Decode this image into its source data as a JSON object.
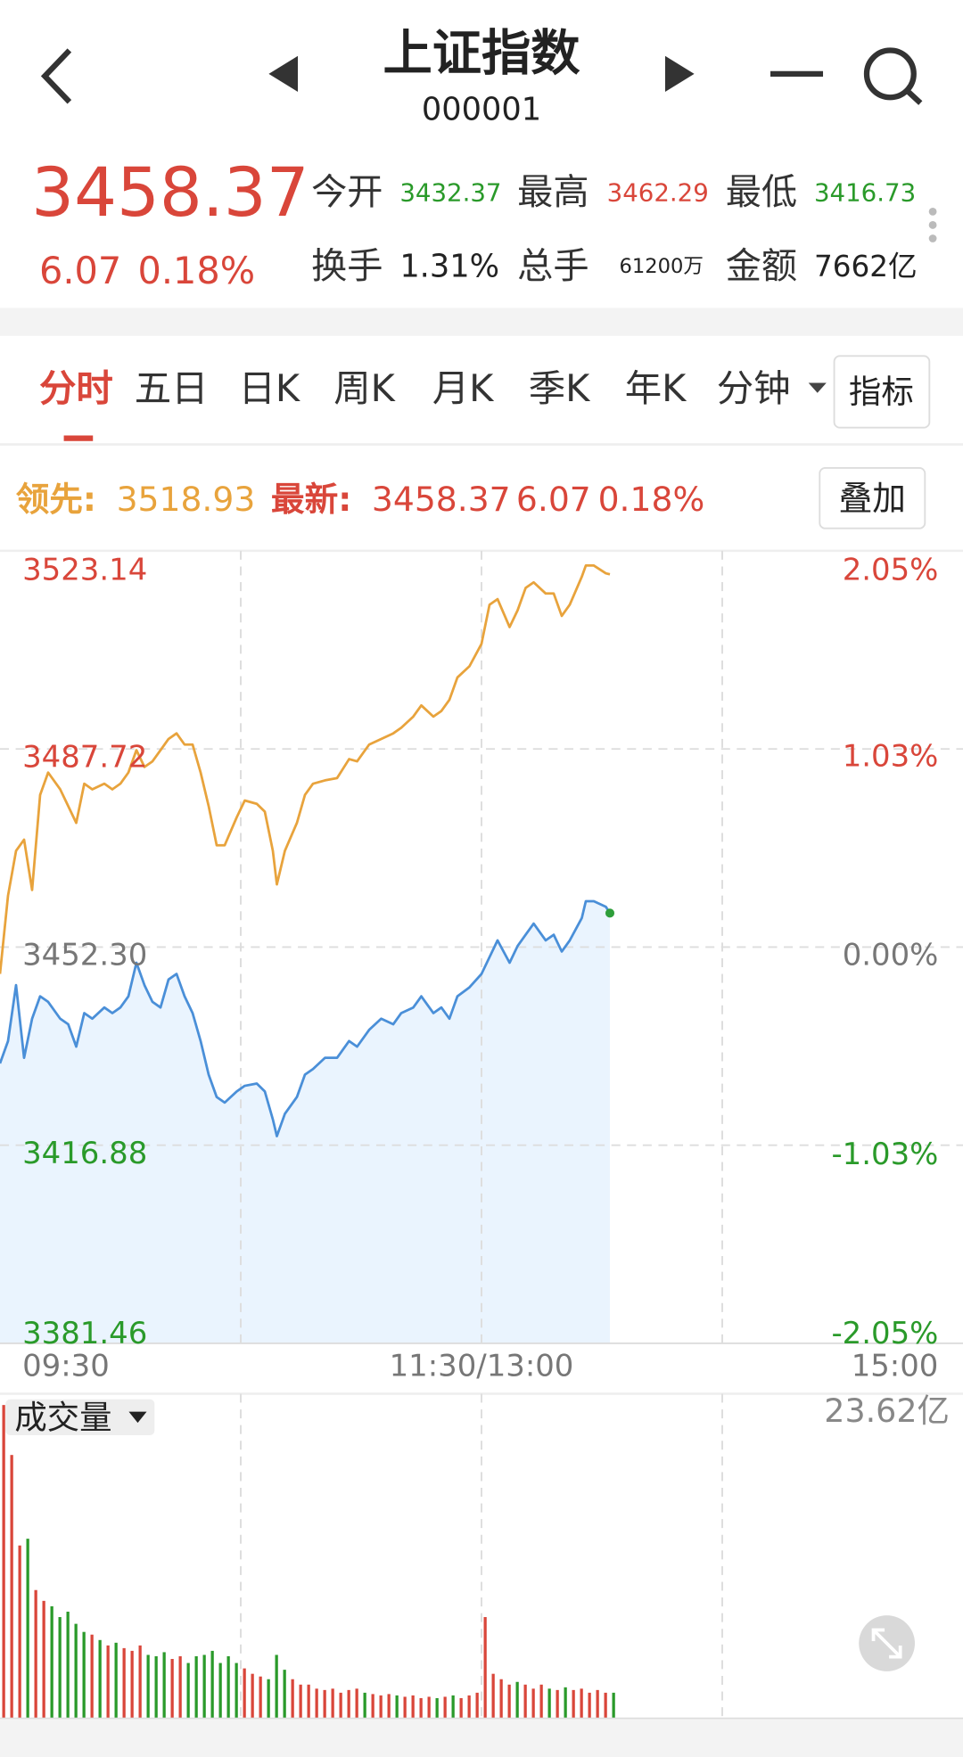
{
  "header": {
    "title": "上证指数",
    "code": "000001"
  },
  "quote": {
    "price": "3458.37",
    "change": "6.07",
    "change_pct": "0.18%",
    "stats": [
      {
        "label": "今开",
        "value": "3432.37"
      },
      {
        "label": "最高",
        "value": "3462.29"
      },
      {
        "label": "最低",
        "value": "3416.73"
      },
      {
        "label": "换手",
        "value": "1.31%"
      },
      {
        "label": "总手",
        "value": "61200万"
      },
      {
        "label": "金额",
        "value": "7662亿"
      }
    ]
  },
  "tabs": [
    "分时",
    "五日",
    "日K",
    "周K",
    "月K",
    "季K",
    "年K",
    "分钟"
  ],
  "indicator_button": "指标",
  "legend": {
    "lead_label": "领先:",
    "lead_value": "3518.93",
    "latest_label": "最新:",
    "latest_value": "3458.37",
    "latest_change": "6.07",
    "latest_pct": "0.18%"
  },
  "overlay_button": "叠加",
  "chart_data": [
    {
      "type": "line",
      "x": [
        0,
        2,
        4,
        6,
        8,
        10,
        12,
        15,
        17,
        19,
        21,
        23,
        26,
        28,
        30,
        32,
        34,
        36,
        38,
        40,
        42,
        44,
        46,
        48,
        50,
        52,
        54,
        56,
        59,
        61,
        64,
        66,
        68,
        69,
        71,
        74,
        76,
        78,
        81,
        84,
        87,
        89,
        92,
        95,
        98,
        100,
        103,
        105,
        108,
        110,
        112,
        114,
        117,
        120,
        122,
        124,
        127,
        129,
        131,
        133,
        136,
        138,
        140,
        142,
        145,
        146,
        148,
        151,
        152
      ],
      "series": [
        {
          "color": "#e8a33c",
          "values": [
            3447.5,
            3461.5,
            3469.5,
            3471.5,
            3462.5,
            3479.5,
            3483.5,
            3480.5,
            3477.5,
            3474.5,
            3481.5,
            3480.5,
            3481.5,
            3480.5,
            3481.5,
            3483.5,
            3487.5,
            3484.5,
            3485.5,
            3487.5,
            3489.5,
            3490.5,
            3488.5,
            3488.5,
            3483.5,
            3477.5,
            3470.5,
            3470.5,
            3475.5,
            3478.5,
            3477.9,
            3476.5,
            3469.5,
            3463.5,
            3469.5,
            3474.5,
            3479.5,
            3481.5,
            3482.1,
            3482.5,
            3485.9,
            3485.5,
            3488.5,
            3489.5,
            3490.5,
            3491.5,
            3493.5,
            3495.5,
            3493.5,
            3494.5,
            3496.5,
            3500.5,
            3502.5,
            3506.5,
            3513.5,
            3514.5,
            3509.5,
            3512.5,
            3516.5,
            3517.5,
            3515.5,
            3515.5,
            3511.5,
            3513.5,
            3518.5,
            3520.5,
            3520.5,
            3519.1,
            3518.93
          ]
        },
        {
          "color": "#4a8fd8",
          "fill": "#eaf4fe",
          "end_marker_color": "#2e9e3a",
          "values": [
            3431.5,
            3435.5,
            3445.5,
            3432.5,
            3439.5,
            3443.5,
            3442.5,
            3439.5,
            3438.5,
            3434.5,
            3440.5,
            3439.5,
            3441.5,
            3440.5,
            3441.5,
            3443.5,
            3449.5,
            3445.5,
            3442.5,
            3441.5,
            3446.5,
            3447.5,
            3443.5,
            3440.5,
            3435.5,
            3429.5,
            3425.5,
            3424.5,
            3426.5,
            3427.5,
            3427.9,
            3426.5,
            3421.5,
            3418.5,
            3422.5,
            3425.5,
            3429.5,
            3430.5,
            3432.5,
            3432.5,
            3435.5,
            3434.5,
            3437.5,
            3439.5,
            3438.5,
            3440.5,
            3441.5,
            3443.5,
            3440.5,
            3441.5,
            3439.5,
            3443.5,
            3445.1,
            3447.5,
            3450.5,
            3453.5,
            3449.5,
            3452.5,
            3454.5,
            3456.5,
            3453.5,
            3454.5,
            3451.5,
            3453.5,
            3457.5,
            3460.5,
            3460.5,
            3459.5,
            3458.37
          ]
        }
      ],
      "xlim": [
        0,
        240
      ],
      "xticks": [
        {
          "value": 0,
          "label": "09:30"
        },
        {
          "value": 60,
          "label": null
        },
        {
          "value": 120,
          "label": "11:30/13:00"
        },
        {
          "value": 180,
          "label": null
        },
        {
          "value": 240,
          "label": "15:00"
        }
      ],
      "ylim": [
        3381.46,
        3523.14
      ],
      "yticks": [
        3523.14,
        3487.72,
        {
          "value": 3452.3,
          "label": "3452.30"
        },
        3416.88,
        3381.46
      ],
      "y2lim": [
        -2.05,
        2.05
      ],
      "y2ticks": [
        {
          "value": 2.05,
          "label": "2.05%"
        },
        {
          "value": 1.03,
          "label": "1.03%"
        },
        {
          "value": 0,
          "label": "0.00%"
        },
        {
          "value": -1.03,
          "label": "-1.03%"
        },
        {
          "value": -2.05,
          "label": "-2.05%"
        }
      ],
      "grid": true,
      "up_color": "#d9463a",
      "down_color": "#2a9a2a",
      "flat_color": "#777777"
    },
    {
      "type": "bar",
      "title": "成交量",
      "x": [
        0,
        2,
        4,
        6,
        8,
        10,
        12,
        14,
        16,
        18,
        20,
        22,
        24,
        26,
        28,
        30,
        32,
        34,
        36,
        38,
        40,
        42,
        44,
        46,
        48,
        50,
        52,
        54,
        56,
        58,
        60,
        62,
        64,
        66,
        68,
        70,
        72,
        74,
        76,
        78,
        80,
        82,
        84,
        86,
        88,
        90,
        92,
        94,
        96,
        98,
        100,
        102,
        104,
        106,
        108,
        110,
        112,
        114,
        116,
        118,
        120,
        122,
        124,
        126,
        128,
        130,
        132,
        134,
        136,
        138,
        140,
        142,
        144,
        146,
        148,
        150,
        152
      ],
      "values": [
        23.2,
        19.5,
        12.8,
        13.3,
        9.5,
        8.7,
        8.3,
        7.5,
        7.9,
        7.0,
        6.4,
        6.2,
        5.8,
        5.4,
        5.6,
        5.2,
        5.0,
        5.4,
        4.7,
        4.6,
        4.9,
        4.4,
        4.6,
        4.1,
        4.6,
        4.7,
        5.0,
        4.1,
        4.6,
        4.1,
        3.7,
        3.3,
        3.1,
        2.9,
        4.7,
        3.6,
        2.9,
        2.5,
        2.5,
        2.2,
        2.1,
        2.2,
        1.9,
        2.1,
        2.2,
        1.9,
        1.8,
        1.7,
        1.8,
        1.7,
        1.6,
        1.7,
        1.5,
        1.6,
        1.5,
        1.6,
        1.7,
        1.5,
        1.7,
        1.9,
        7.5,
        3.3,
        2.9,
        2.5,
        2.7,
        2.5,
        2.2,
        2.5,
        2.2,
        2.1,
        2.3,
        2.1,
        2.2,
        1.9,
        2.1,
        1.9,
        1.9
      ],
      "xlim": [
        0,
        240
      ],
      "ylim": [
        0,
        23.62
      ],
      "yticks": [
        {
          "value": 23.62,
          "label": "23.62亿"
        }
      ],
      "up_color": "#d9463a",
      "down_color": "#2a9a2a"
    }
  ]
}
